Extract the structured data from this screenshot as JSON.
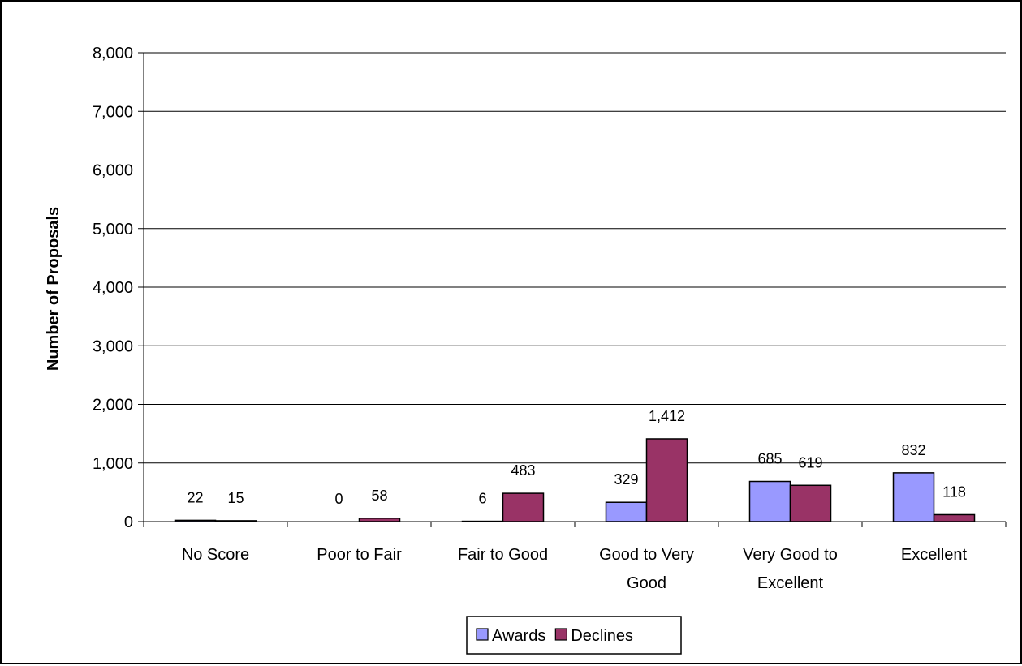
{
  "chart_data": {
    "type": "bar",
    "title": "",
    "xlabel": "",
    "ylabel": "Number of Proposals",
    "ylim": [
      0,
      8000
    ],
    "yticks": [
      0,
      1000,
      2000,
      3000,
      4000,
      5000,
      6000,
      7000,
      8000
    ],
    "ytick_labels": [
      "0",
      "1,000",
      "2,000",
      "3,000",
      "4,000",
      "5,000",
      "6,000",
      "7,000",
      "8,000"
    ],
    "grid": true,
    "legend_position": "bottom",
    "categories": [
      [
        "No Score"
      ],
      [
        "Poor to Fair"
      ],
      [
        "Fair to Good"
      ],
      [
        "Good to Very",
        "Good"
      ],
      [
        "Very Good to",
        "Excellent"
      ],
      [
        "Excellent"
      ]
    ],
    "series": [
      {
        "name": "Awards",
        "color": "#9999ff",
        "values": [
          22,
          0,
          6,
          329,
          685,
          832
        ],
        "labels": [
          "22",
          "0",
          "6",
          "329",
          "685",
          "832"
        ]
      },
      {
        "name": "Declines",
        "color": "#993366",
        "values": [
          15,
          58,
          483,
          1412,
          619,
          118
        ],
        "labels": [
          "15",
          "58",
          "483",
          "1,412",
          "619",
          "118"
        ]
      }
    ]
  }
}
